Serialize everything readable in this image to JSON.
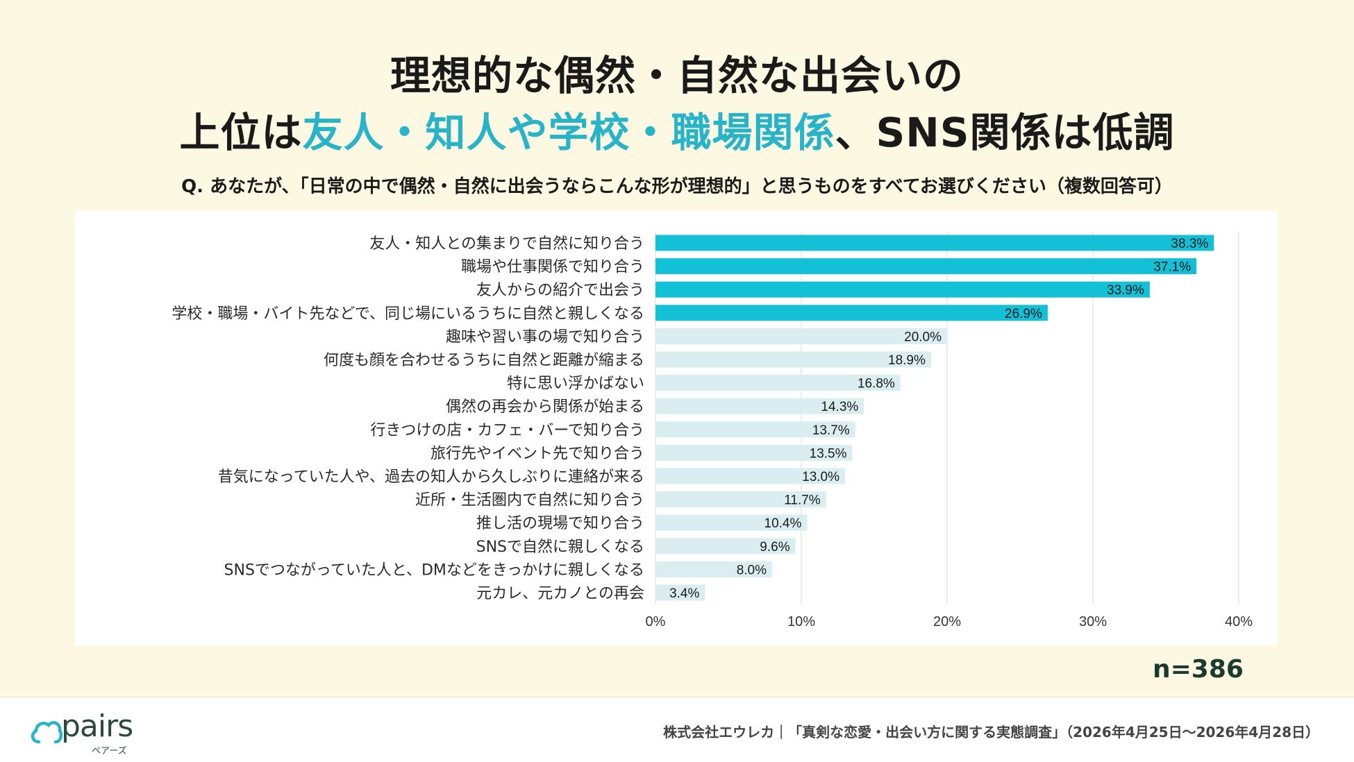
{
  "title": {
    "line1": "理想的な偶然・自然な出会いの",
    "line2_part1": "上位は",
    "line2_accent": "友人・知人や学校・職場関係",
    "line2_part2": "、SNS関係は低調"
  },
  "question": "Q. あなたが、「日常の中で偶然・自然に出会うならこんな形が理想的」と思うものをすべてお選びください（複数回答可）",
  "sample_size": "n=386",
  "footer": {
    "logo_text": "pairs",
    "logo_sub": "ペアーズ",
    "source": "株式会社エウレカ｜「真剣な恋愛・出会い方に関する実態調査」（2026年4月25日～2026年4月28日）"
  },
  "colors": {
    "highlight_bar": "#13c0d6",
    "normal_bar": "#daedf0",
    "accent_text": "#27b4c8",
    "background": "#fdf8e1"
  },
  "chart_data": {
    "type": "bar",
    "orientation": "horizontal",
    "categories": [
      "友人・知人との集まりで自然に知り合う",
      "職場や仕事関係で知り合う",
      "友人からの紹介で出会う",
      "学校・職場・バイト先などで、同じ場にいるうちに自然と親しくなる",
      "趣味や習い事の場で知り合う",
      "何度も顔を合わせるうちに自然と距離が縮まる",
      "特に思い浮かばない",
      "偶然の再会から関係が始まる",
      "行きつけの店・カフェ・バーで知り合う",
      "旅行先やイベント先で知り合う",
      "昔気になっていた人や、過去の知人から久しぶりに連絡が来る",
      "近所・生活圏内で自然に知り合う",
      "推し活の現場で知り合う",
      "SNSで自然に親しくなる",
      "SNSでつながっていた人と、DMなどをきっかけに親しくなる",
      "元カレ、元カノとの再会"
    ],
    "values": [
      38.3,
      37.1,
      33.9,
      26.9,
      20.0,
      18.9,
      16.8,
      14.3,
      13.7,
      13.5,
      13.0,
      11.7,
      10.4,
      9.6,
      8.0,
      3.4
    ],
    "value_labels": [
      "38.3%",
      "37.1%",
      "33.9%",
      "26.9%",
      "20.0%",
      "18.9%",
      "16.8%",
      "14.3%",
      "13.7%",
      "13.5%",
      "13.0%",
      "11.7%",
      "10.4%",
      "9.6%",
      "8.0%",
      "3.4%"
    ],
    "highlighted_count": 4,
    "xlim": [
      0,
      40
    ],
    "x_ticks": [
      0,
      10,
      20,
      30,
      40
    ],
    "x_tick_labels": [
      "0%",
      "10%",
      "20%",
      "30%",
      "40%"
    ],
    "grid": true
  }
}
